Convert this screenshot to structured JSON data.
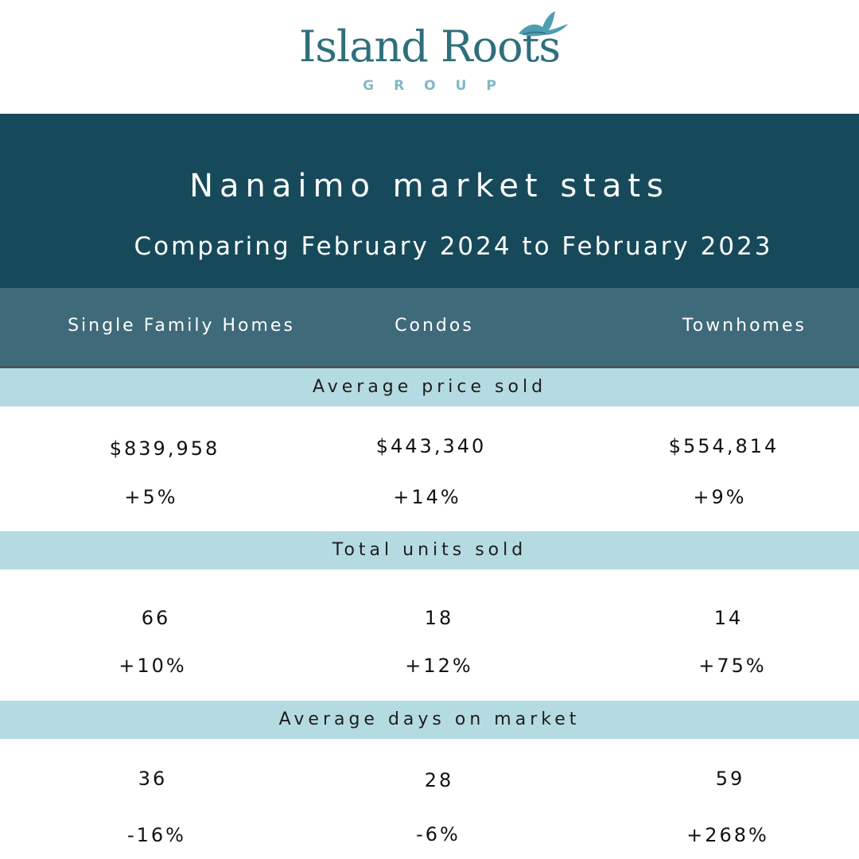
{
  "brand": {
    "name": "Island Roots",
    "subname": "GROUP",
    "logo_icon": "bird-icon",
    "colors": {
      "wordmark": "#2f6f7c",
      "accent": "#7fb8c7"
    }
  },
  "header": {
    "title": "Nanaimo market stats",
    "subtitle": "Comparing February 2024 to February 2023",
    "background": "#164a5b"
  },
  "columns": [
    "Single Family Homes",
    "Condos",
    "Townhomes"
  ],
  "colors": {
    "column_band": "#3e6a79",
    "section_band": "#b5dbe2",
    "text": "#111111"
  },
  "sections": [
    {
      "label": "Average price sold",
      "values": [
        "$839,958",
        "$443,340",
        "$554,814"
      ],
      "changes": [
        "+5%",
        "+14%",
        "+9%"
      ]
    },
    {
      "label": "Total units sold",
      "values": [
        "66",
        "18",
        "14"
      ],
      "changes": [
        "+10%",
        "+12%",
        "+75%"
      ]
    },
    {
      "label": "Average days on market",
      "values": [
        "36",
        "28",
        "59"
      ],
      "changes": [
        "-16%",
        "-6%",
        "+268%"
      ]
    }
  ]
}
